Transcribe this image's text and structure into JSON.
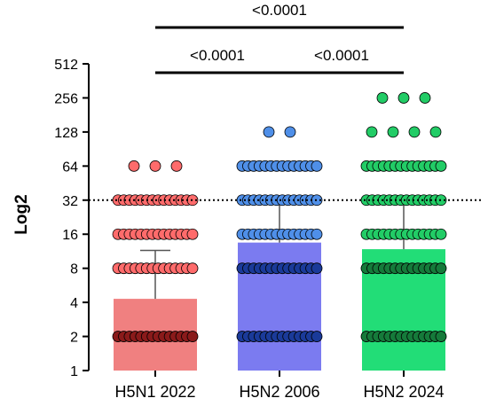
{
  "chart_data": {
    "type": "bar",
    "ylabel": "Log2",
    "y_scale": "log2",
    "ylim": [
      1,
      512
    ],
    "y_ticks": [
      1,
      2,
      4,
      8,
      16,
      32,
      64,
      128,
      256,
      512
    ],
    "reference_line": 32,
    "categories": [
      "H5N1 2022",
      "H5N2 2006",
      "H5N2 2024"
    ],
    "series": [
      {
        "values": [
          4.3,
          13.5,
          11.8
        ],
        "error_upper": [
          11.5,
          30,
          35
        ],
        "bar_colors": [
          "#f08080",
          "#7b7bf0",
          "#22dd77"
        ],
        "point_colors": [
          "#ff6b6b",
          "#4f8fe8",
          "#22cc66"
        ],
        "points": [
          {
            "value": 2,
            "count": 14
          },
          {
            "value": 8,
            "count": 14
          },
          {
            "value": 16,
            "count": 14
          },
          {
            "value": 32,
            "count": 14
          },
          {
            "value": 64,
            "count": 3
          }
        ]
      }
    ],
    "group_points": [
      [
        {
          "value": 2,
          "count": 14
        },
        {
          "value": 8,
          "count": 14
        },
        {
          "value": 16,
          "count": 14
        },
        {
          "value": 32,
          "count": 14
        },
        {
          "value": 64,
          "count": 3
        }
      ],
      [
        {
          "value": 2,
          "count": 14
        },
        {
          "value": 8,
          "count": 14
        },
        {
          "value": 16,
          "count": 14
        },
        {
          "value": 32,
          "count": 14
        },
        {
          "value": 64,
          "count": 14
        },
        {
          "value": 128,
          "count": 2
        }
      ],
      [
        {
          "value": 2,
          "count": 14
        },
        {
          "value": 8,
          "count": 14
        },
        {
          "value": 16,
          "count": 14
        },
        {
          "value": 32,
          "count": 14
        },
        {
          "value": 64,
          "count": 14
        },
        {
          "value": 128,
          "count": 4
        },
        {
          "value": 256,
          "count": 3
        }
      ]
    ],
    "comparisons": [
      {
        "from": 0,
        "to": 1,
        "label": "<0.0001"
      },
      {
        "from": 1,
        "to": 2,
        "label": "<0.0001"
      },
      {
        "from": 0,
        "to": 2,
        "label": "<0.0001"
      }
    ]
  }
}
